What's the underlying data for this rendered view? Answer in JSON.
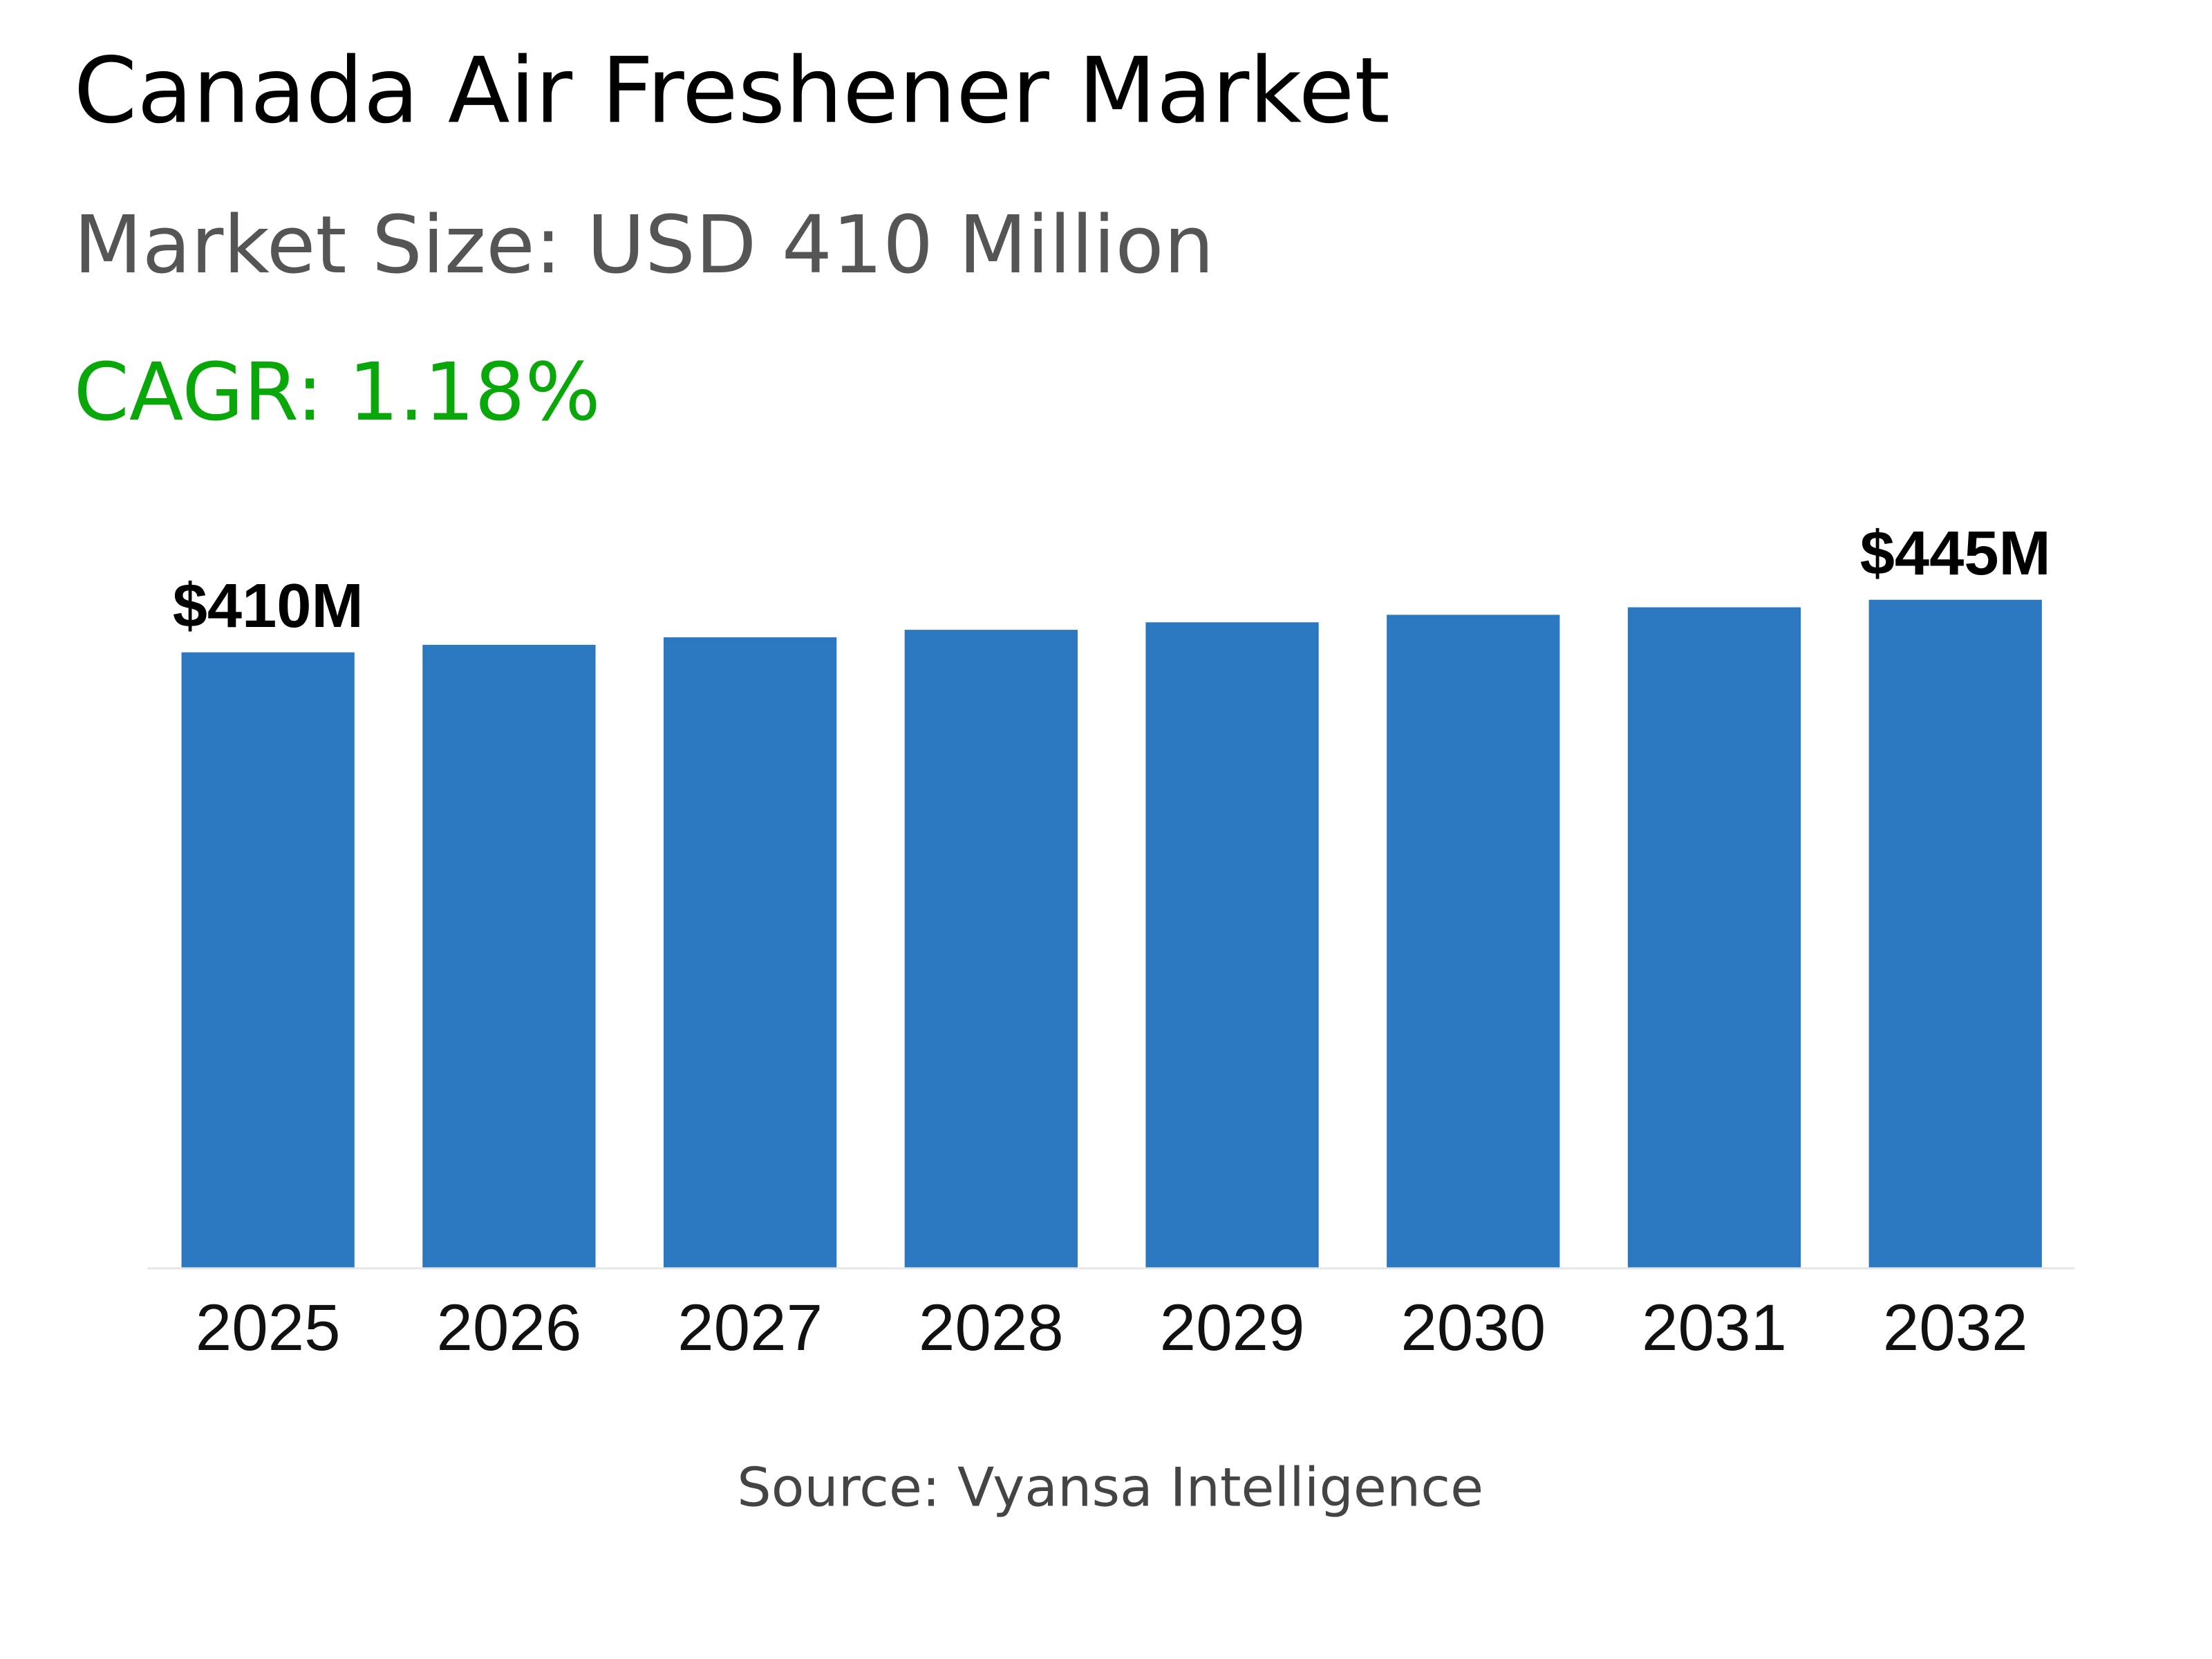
{
  "header": {
    "title": "Canada Air Freshener Market",
    "market_size": "Market Size: USD 410 Million",
    "cagr": "CAGR: 1.18%"
  },
  "colors": {
    "bar": "#2b78c0",
    "cagr": "#0aa70a",
    "subtitle": "#555555"
  },
  "chart_data": {
    "type": "bar",
    "categories": [
      "2025",
      "2026",
      "2027",
      "2028",
      "2029",
      "2030",
      "2031",
      "2032"
    ],
    "values": [
      410,
      415,
      420,
      425,
      430,
      435,
      440,
      445
    ],
    "data_labels": {
      "0": "$410M",
      "7": "$445M"
    },
    "ylim": [
      0,
      445
    ],
    "grid": false,
    "legend": "none",
    "title": "",
    "xlabel": "",
    "ylabel": ""
  },
  "footer": {
    "source": "Source: Vyansa Intelligence"
  }
}
